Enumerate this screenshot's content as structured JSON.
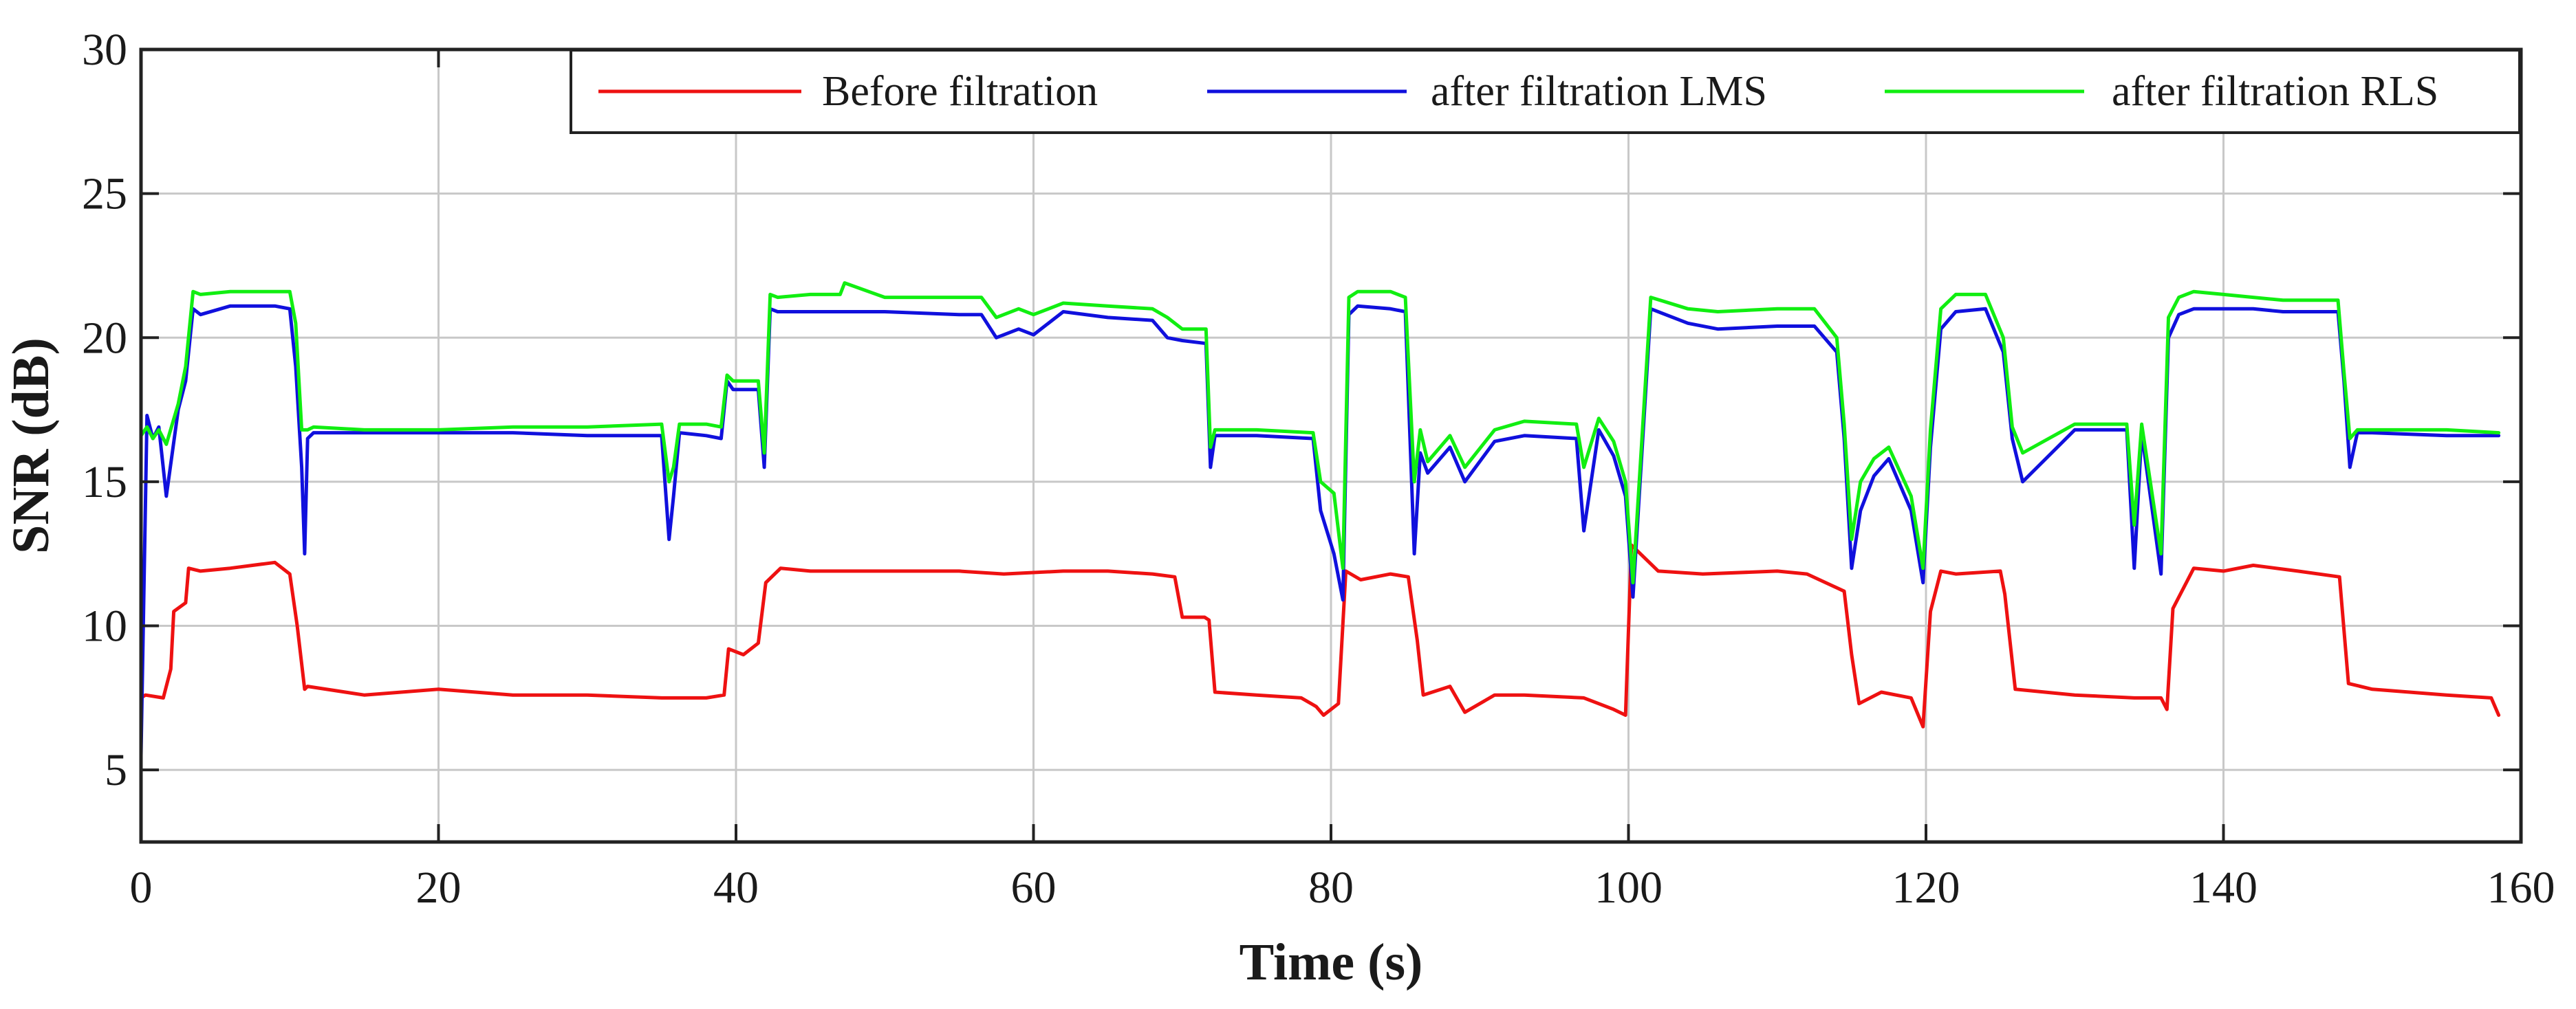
{
  "chart_data": {
    "type": "line",
    "title": "",
    "xlabel": "Time (s)",
    "ylabel": "SNR (dB)",
    "xlim": [
      0,
      160
    ],
    "ylim": [
      2.5,
      30
    ],
    "xticks": [
      0,
      20,
      40,
      60,
      80,
      100,
      120,
      140,
      160
    ],
    "yticks": [
      5,
      10,
      15,
      20,
      25,
      30
    ],
    "grid": true,
    "legend_position": "top-right",
    "series": [
      {
        "name": "Before filtration",
        "color": "#ee1111",
        "x": [
          0,
          0.3,
          1.5,
          2.0,
          2.2,
          3.0,
          3.2,
          4.0,
          6.0,
          9.0,
          10.0,
          10.5,
          11.0,
          11.2,
          15,
          20,
          25,
          30,
          35,
          38,
          39.2,
          39.5,
          40.5,
          41.5,
          42.0,
          43.0,
          45,
          50,
          55,
          58,
          62,
          65,
          68,
          69.5,
          70,
          71.5,
          71.8,
          72.2,
          75,
          78,
          79,
          79.5,
          80.5,
          81.0,
          82,
          84,
          85.2,
          85.8,
          86.2,
          88,
          89,
          91,
          93,
          97,
          99,
          99.8,
          100.2,
          102,
          105,
          110,
          112,
          114.5,
          115,
          115.5,
          117,
          119,
          119.8,
          120.3,
          121,
          122,
          125,
          125.3,
          126,
          130,
          134,
          135.8,
          136.2,
          136.6,
          138,
          140,
          142,
          145,
          147.8,
          148.4,
          150,
          155,
          158,
          158.5
        ],
        "y": [
          7.5,
          7.6,
          7.5,
          8.5,
          10.5,
          10.8,
          12.0,
          11.9,
          12.0,
          12.2,
          11.8,
          10.0,
          7.8,
          7.9,
          7.6,
          7.8,
          7.6,
          7.6,
          7.5,
          7.5,
          7.6,
          9.2,
          9.0,
          9.4,
          11.5,
          12.0,
          11.9,
          11.9,
          11.9,
          11.8,
          11.9,
          11.9,
          11.8,
          11.7,
          10.3,
          10.3,
          10.2,
          7.7,
          7.6,
          7.5,
          7.2,
          6.9,
          7.3,
          11.9,
          11.6,
          11.8,
          11.7,
          9.5,
          7.6,
          7.9,
          7.0,
          7.6,
          7.6,
          7.5,
          7.1,
          6.9,
          12.8,
          11.9,
          11.8,
          11.9,
          11.8,
          11.2,
          9.0,
          7.3,
          7.7,
          7.5,
          6.5,
          10.5,
          11.9,
          11.8,
          11.9,
          11.1,
          7.8,
          7.6,
          7.5,
          7.5,
          7.1,
          10.6,
          12.0,
          11.9,
          12.1,
          11.9,
          11.7,
          8.0,
          7.8,
          7.6,
          7.5,
          6.9
        ]
      },
      {
        "name": "after filtration LMS",
        "color": "#1010dd",
        "x": [
          0,
          0.4,
          0.8,
          1.2,
          1.7,
          2.5,
          3.0,
          3.5,
          4.0,
          6.0,
          9.0,
          10.0,
          10.4,
          10.8,
          11.0,
          11.2,
          11.6,
          15,
          20,
          25,
          30,
          35,
          35.5,
          35.8,
          36.2,
          38,
          39,
          39.4,
          39.8,
          41.5,
          41.9,
          42.3,
          42.8,
          45,
          50,
          55,
          56.5,
          57.5,
          59,
          60,
          62,
          65,
          68,
          69,
          70,
          71.6,
          71.9,
          72.2,
          75,
          78.8,
          79.3,
          80.2,
          80.8,
          81.2,
          81.8,
          84,
          85.0,
          85.6,
          86.0,
          86.5,
          88,
          89,
          91,
          93,
          96.5,
          97,
          98,
          99,
          99.8,
          100.3,
          101.5,
          104,
          106,
          110,
          112.5,
          114,
          114.5,
          115.0,
          115.6,
          116.5,
          117.5,
          119,
          119.8,
          120.3,
          121.0,
          122,
          124,
          125.2,
          125.8,
          126.5,
          130,
          133.5,
          134.0,
          134.5,
          135.8,
          136.3,
          137.0,
          138,
          140,
          142,
          144,
          146,
          147.7,
          148.1,
          148.5,
          149,
          150,
          155,
          158.5
        ],
        "y": [
          5.5,
          17.3,
          16.5,
          16.9,
          14.5,
          17.5,
          18.5,
          21.0,
          20.8,
          21.1,
          21.1,
          21.0,
          19.0,
          15.5,
          12.5,
          16.5,
          16.7,
          16.7,
          16.7,
          16.7,
          16.6,
          16.6,
          13.0,
          14.5,
          16.7,
          16.6,
          16.5,
          18.5,
          18.2,
          18.2,
          15.5,
          21.0,
          20.9,
          20.9,
          20.9,
          20.8,
          20.8,
          20.0,
          20.3,
          20.1,
          20.9,
          20.7,
          20.6,
          20.0,
          19.9,
          19.8,
          15.5,
          16.6,
          16.6,
          16.5,
          14.0,
          12.5,
          10.9,
          20.8,
          21.1,
          21.0,
          20.9,
          12.5,
          16.0,
          15.3,
          16.2,
          15.0,
          16.4,
          16.6,
          16.5,
          13.3,
          16.8,
          15.9,
          14.5,
          11.0,
          21.0,
          20.5,
          20.3,
          20.4,
          20.4,
          19.5,
          16.5,
          12.0,
          14.0,
          15.2,
          15.8,
          14.0,
          11.5,
          16.2,
          20.3,
          20.9,
          21.0,
          19.5,
          16.5,
          15.0,
          16.8,
          16.8,
          12.0,
          16.7,
          11.8,
          20.0,
          20.8,
          21.0,
          21.0,
          21.0,
          20.9,
          20.9,
          20.9,
          18.5,
          15.5,
          16.7,
          16.7,
          16.6,
          16.6
        ]
      },
      {
        "name": "after filtration RLS",
        "color": "#11ee11",
        "x": [
          0,
          0.4,
          0.8,
          1.2,
          1.7,
          2.5,
          3.0,
          3.5,
          4.0,
          6.0,
          9.0,
          10.0,
          10.4,
          10.8,
          11.0,
          11.2,
          11.6,
          15,
          20,
          25,
          30,
          35,
          35.5,
          35.8,
          36.2,
          38,
          39,
          39.4,
          39.8,
          41.5,
          41.9,
          42.3,
          42.8,
          45,
          47,
          47.3,
          50,
          55,
          56.5,
          57.5,
          59,
          60,
          62,
          65,
          68,
          69,
          70,
          71.6,
          71.9,
          72.2,
          75,
          78.8,
          79.3,
          80.2,
          80.8,
          81.2,
          81.8,
          84,
          85.0,
          85.6,
          86.0,
          86.5,
          88,
          89,
          91,
          93,
          96.5,
          97,
          98,
          99,
          99.8,
          100.3,
          101.5,
          104,
          106,
          110,
          112.5,
          114,
          114.5,
          115.0,
          115.6,
          116.5,
          117.5,
          119,
          119.8,
          120.3,
          121.0,
          122,
          124,
          125.2,
          125.8,
          126.5,
          130,
          133.5,
          134.0,
          134.5,
          135.8,
          136.3,
          137.0,
          138,
          140,
          142,
          144,
          146,
          147.7,
          148.1,
          148.5,
          149,
          150,
          155,
          158.5
        ],
        "y": [
          16.6,
          16.9,
          16.5,
          16.8,
          16.3,
          17.7,
          19.0,
          21.6,
          21.5,
          21.6,
          21.6,
          21.6,
          20.5,
          16.8,
          16.8,
          16.8,
          16.9,
          16.8,
          16.8,
          16.9,
          16.9,
          17.0,
          15.0,
          15.5,
          17.0,
          17.0,
          16.9,
          18.7,
          18.5,
          18.5,
          16.0,
          21.5,
          21.4,
          21.5,
          21.5,
          21.9,
          21.4,
          21.4,
          21.4,
          20.7,
          21.0,
          20.8,
          21.2,
          21.1,
          21.0,
          20.7,
          20.3,
          20.3,
          16.2,
          16.8,
          16.8,
          16.7,
          15.0,
          14.6,
          12.0,
          21.4,
          21.6,
          21.6,
          21.4,
          15.0,
          16.8,
          15.7,
          16.6,
          15.5,
          16.8,
          17.1,
          17.0,
          15.5,
          17.2,
          16.4,
          15.0,
          11.5,
          21.4,
          21.0,
          20.9,
          21.0,
          21.0,
          20.0,
          17.0,
          13.0,
          15.0,
          15.8,
          16.2,
          14.5,
          12.0,
          16.8,
          21.0,
          21.5,
          21.5,
          20.0,
          16.9,
          16.0,
          17.0,
          17.0,
          13.5,
          17.0,
          12.5,
          20.7,
          21.4,
          21.6,
          21.5,
          21.4,
          21.3,
          21.3,
          21.3,
          18.8,
          16.5,
          16.8,
          16.8,
          16.8,
          16.7
        ]
      }
    ]
  }
}
